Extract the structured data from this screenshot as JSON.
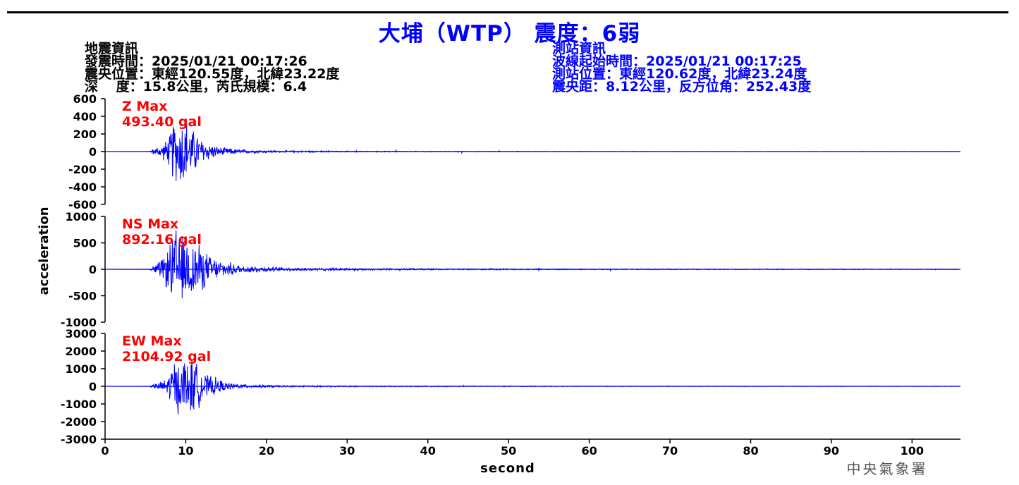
{
  "title": "大埔（WTP） 震度：6弱",
  "quake_info": {
    "heading": "地震資訊",
    "time": "發震時間：2025/01/21 00:17:26",
    "epicenter": "震央位置：東經120.55度，北緯23.22度",
    "depth": "深　 度：15.8公里，芮氏規模：6.4"
  },
  "station_info": {
    "heading": "測站資訊",
    "start_time": "波線起始時間：2025/01/21 00:17:25",
    "location": "測站位置：東經120.62度，北緯23.24度",
    "distance": "震央距：8.12公里，反方位角：252.43度"
  },
  "credit": "中央氣象署",
  "colors": {
    "trace": "#0000ff",
    "peak_label": "#ff0000",
    "title": "#0000ff"
  },
  "chart_data": {
    "type": "line",
    "xlabel": "second",
    "ylabel": "acceleration",
    "xlim": [
      0,
      106
    ],
    "xticks": [
      0,
      10,
      20,
      30,
      40,
      50,
      60,
      70,
      80,
      90,
      100
    ],
    "series": [
      {
        "name": "Z",
        "max_label": "Z Max",
        "max_value": "493.40 gal",
        "ylim": [
          -600,
          600
        ],
        "yticks": [
          600,
          400,
          200,
          0,
          -200,
          -400,
          -600
        ],
        "envelope": [
          [
            0,
            0
          ],
          [
            5.5,
            3
          ],
          [
            6,
            40
          ],
          [
            7,
            80
          ],
          [
            8,
            200
          ],
          [
            8.5,
            430
          ],
          [
            9,
            350
          ],
          [
            9.8,
            493
          ],
          [
            10.5,
            300
          ],
          [
            11.3,
            260
          ],
          [
            12,
            150
          ],
          [
            14,
            60
          ],
          [
            17,
            25
          ],
          [
            22,
            12
          ],
          [
            30,
            8
          ],
          [
            45,
            5
          ],
          [
            60,
            4
          ],
          [
            80,
            3
          ],
          [
            106,
            3
          ]
        ]
      },
      {
        "name": "NS",
        "max_label": "NS Max",
        "max_value": "892.16 gal",
        "ylim": [
          -1000,
          1000
        ],
        "yticks": [
          1000,
          500,
          0,
          -500,
          -1000
        ],
        "envelope": [
          [
            0,
            0
          ],
          [
            5.5,
            5
          ],
          [
            6,
            80
          ],
          [
            7,
            200
          ],
          [
            8,
            500
          ],
          [
            8.7,
            892
          ],
          [
            9.5,
            700
          ],
          [
            10.3,
            650
          ],
          [
            11.3,
            600
          ],
          [
            12.5,
            350
          ],
          [
            14,
            200
          ],
          [
            17,
            80
          ],
          [
            22,
            40
          ],
          [
            30,
            25
          ],
          [
            45,
            15
          ],
          [
            60,
            12
          ],
          [
            80,
            10
          ],
          [
            106,
            8
          ]
        ]
      },
      {
        "name": "EW",
        "max_label": "EW Max",
        "max_value": "2104.92 gal",
        "ylim": [
          -3000,
          3000
        ],
        "yticks": [
          3000,
          2000,
          1000,
          0,
          -1000,
          -2000,
          -3000
        ],
        "envelope": [
          [
            0,
            0
          ],
          [
            5.5,
            10
          ],
          [
            6,
            150
          ],
          [
            7,
            300
          ],
          [
            8,
            900
          ],
          [
            8.5,
            1800
          ],
          [
            9.5,
            1500
          ],
          [
            10.2,
            2105
          ],
          [
            11.3,
            1500
          ],
          [
            12.5,
            700
          ],
          [
            13.5,
            600
          ],
          [
            15,
            250
          ],
          [
            18,
            100
          ],
          [
            22,
            60
          ],
          [
            30,
            40
          ],
          [
            45,
            30
          ],
          [
            60,
            25
          ],
          [
            80,
            20
          ],
          [
            106,
            15
          ]
        ]
      }
    ]
  }
}
